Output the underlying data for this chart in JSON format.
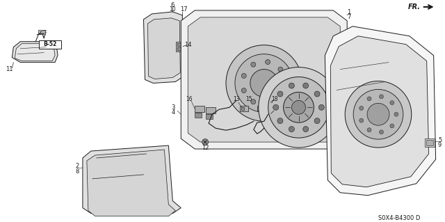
{
  "bg_color": "#ffffff",
  "lc": "#1a1a1a",
  "fig_width": 6.4,
  "fig_height": 3.19,
  "dpi": 100,
  "diagram_code": "S0X4-B4300 D"
}
